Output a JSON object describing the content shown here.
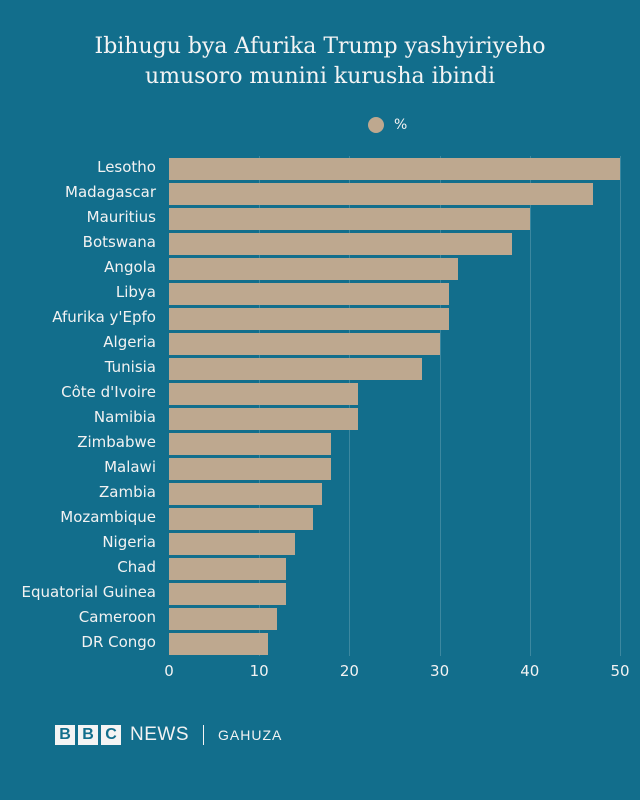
{
  "title_line1": "Ibihugu bya Afurika Trump yashyiriyeho",
  "title_line2": "umusoro munini kurusha ibindi",
  "legend": {
    "label": "%",
    "color": "#bea88f"
  },
  "footer": {
    "bbc": [
      "B",
      "B",
      "C"
    ],
    "news": "NEWS",
    "service": "GAHUZA"
  },
  "colors": {
    "background": "#126e8c",
    "bar": "#bea88f",
    "text": "#f2f2f2"
  },
  "chart_data": {
    "type": "bar",
    "orientation": "horizontal",
    "title": "Ibihugu bya Afurika Trump yashyiriyeho umusoro munini kurusha ibindi",
    "xlabel": "",
    "ylabel": "",
    "legend": [
      "%"
    ],
    "legend_position": "top",
    "grid": true,
    "xlim": [
      0,
      50
    ],
    "xticks": [
      0,
      10,
      20,
      30,
      40,
      50
    ],
    "categories": [
      "Lesotho",
      "Madagascar",
      "Mauritius",
      "Botswana",
      "Angola",
      "Libya",
      "Afurika y'Epfo",
      "Algeria",
      "Tunisia",
      "Côte d'Ivoire",
      "Namibia",
      "Zimbabwe",
      "Malawi",
      "Zambia",
      "Mozambique",
      "Nigeria",
      "Chad",
      "Equatorial Guinea",
      "Cameroon",
      "DR Congo"
    ],
    "values": [
      50,
      47,
      40,
      38,
      32,
      31,
      31,
      30,
      28,
      21,
      21,
      18,
      18,
      17,
      16,
      14,
      13,
      13,
      12,
      11
    ]
  }
}
